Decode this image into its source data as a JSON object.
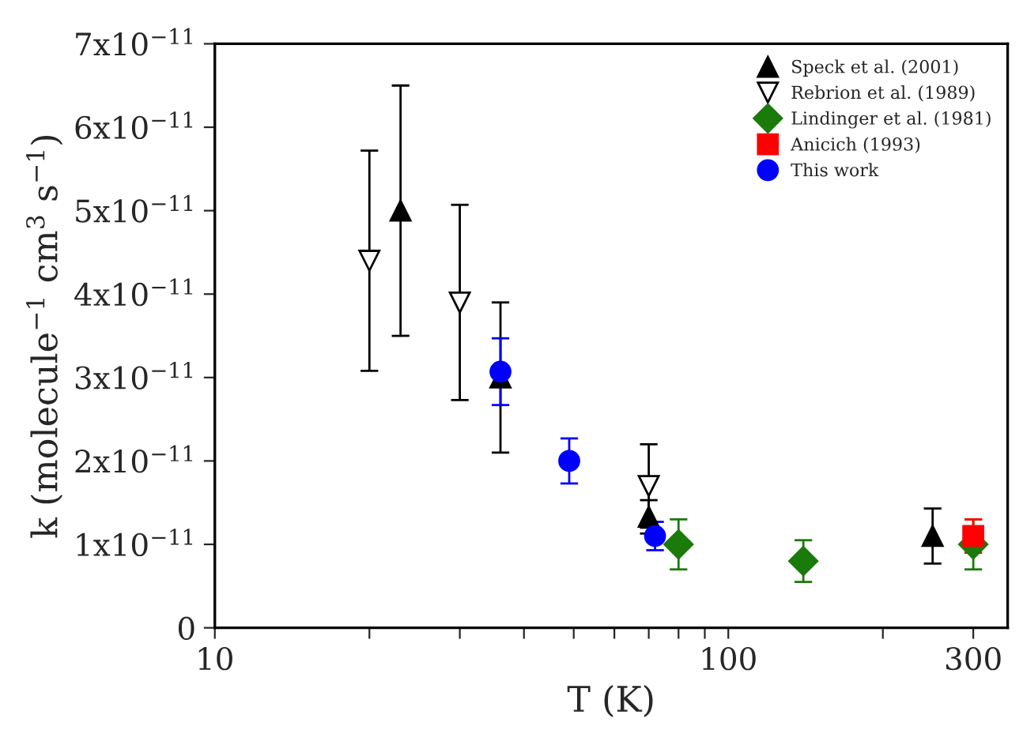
{
  "chart_data": {
    "type": "scatter",
    "xlabel": "T (K)",
    "ylabel": "k (molecule$^{−1}$ cm$^{3}$ s$^{−1}$)",
    "log": "x",
    "xlim": [
      10,
      350
    ],
    "xticks": [
      10,
      {
        "value": 20,
        "label": null
      },
      {
        "value": 30,
        "label": null
      },
      {
        "value": 40,
        "label": null
      },
      {
        "value": 50,
        "label": null
      },
      {
        "value": 60,
        "label": null
      },
      {
        "value": 70,
        "label": null
      },
      {
        "value": 80,
        "label": null
      },
      {
        "value": 90,
        "label": null
      },
      100,
      {
        "value": 200,
        "label": null
      },
      300
    ],
    "ylim": [
      0,
      7e-11
    ],
    "yticks": [
      0,
      {
        "value": 1e-11,
        "label": "1x10$^{−11}$"
      },
      {
        "value": 2e-11,
        "label": "2x10$^{−11}$"
      },
      {
        "value": 3e-11,
        "label": "3x10$^{−11}$"
      },
      {
        "value": 4e-11,
        "label": "4x10$^{−11}$"
      },
      {
        "value": 5e-11,
        "label": "5x10$^{−11}$"
      },
      {
        "value": 6e-11,
        "label": "6x10$^{−11}$"
      },
      {
        "value": 7e-11,
        "label": "7x10$^{−11}$"
      }
    ],
    "grid": false,
    "legend": "top right",
    "series": [
      {
        "name": "Speck et al. (2001)",
        "color": "#000000",
        "marker": "triangle",
        "x": [
          23,
          36,
          70,
          250
        ],
        "values": [
          5e-11,
          3e-11,
          1.33e-11,
          1.1e-11
        ],
        "errors": [
          1.5e-11,
          9e-12,
          2e-12,
          3.3e-12
        ]
      },
      {
        "name": "Rebrion et al. (1989)",
        "color": "#000000",
        "marker": "triangle_down",
        "x": [
          20,
          30,
          70
        ],
        "values": [
          4.4e-11,
          3.9e-11,
          1.7e-11
        ],
        "errors": [
          1.32e-11,
          1.17e-11,
          5e-12
        ]
      },
      {
        "name": "Lindinger et al. (1981)",
        "color": "#1a7a0a",
        "marker": "diamond",
        "x": [
          80,
          140,
          300
        ],
        "values": [
          1e-11,
          8e-12,
          1e-11
        ],
        "errors": [
          3e-12,
          2.5e-12,
          3e-12
        ]
      },
      {
        "name": "Anicich (1993)",
        "color": "#ff0000",
        "marker": "square",
        "x": [
          300
        ],
        "values": [
          1.1e-11
        ],
        "errors": [
          2e-12
        ]
      },
      {
        "name": "This work",
        "color": "#0000ff",
        "marker": "circle",
        "x": [
          36,
          49,
          72
        ],
        "values": [
          3.07e-11,
          2e-11,
          1.1e-11
        ],
        "errors": [
          4e-12,
          2.7e-12,
          1.7e-12
        ]
      }
    ]
  }
}
